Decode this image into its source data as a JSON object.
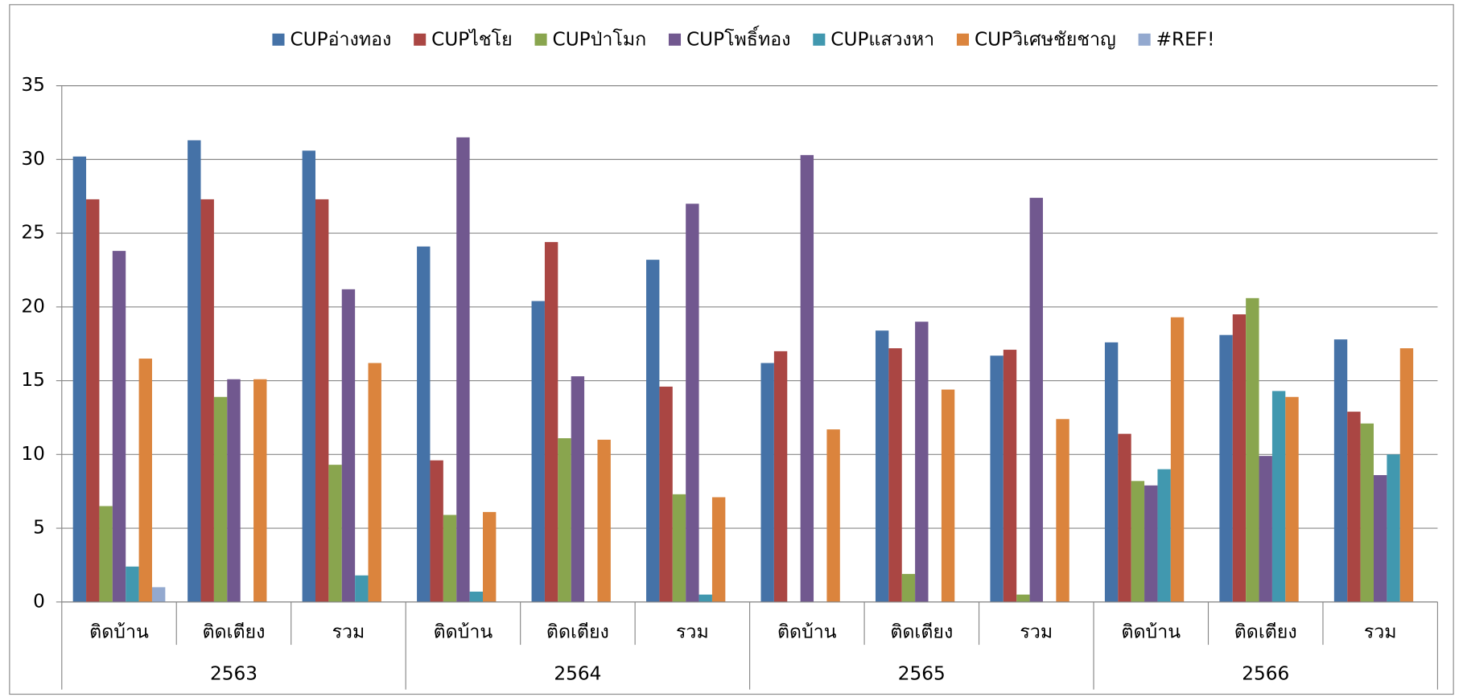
{
  "chart_data": {
    "type": "bar",
    "categories": [
      "ติดบ้าน",
      "ติดเตียง",
      "รวม",
      "ติดบ้าน",
      "ติดเตียง",
      "รวม",
      "ติดบ้าน",
      "ติดเตียง",
      "รวม",
      "ติดบ้าน",
      "ติดเตียง",
      "รวม"
    ],
    "category_groups": [
      "2563",
      "2564",
      "2565",
      "2566"
    ],
    "series": [
      {
        "name": "CUPอ่างทอง",
        "color": "#4572a7",
        "values": [
          30.2,
          31.3,
          30.6,
          24.1,
          20.4,
          23.2,
          16.2,
          18.4,
          16.7,
          17.6,
          18.1,
          17.8
        ]
      },
      {
        "name": "CUPไชโย",
        "color": "#aa4643",
        "values": [
          27.3,
          27.3,
          27.3,
          9.6,
          24.4,
          14.6,
          17.0,
          17.2,
          17.1,
          11.4,
          19.5,
          12.9
        ]
      },
      {
        "name": "CUPป่าโมก",
        "color": "#89a54e",
        "values": [
          6.5,
          13.9,
          9.3,
          5.9,
          11.1,
          7.3,
          0,
          1.9,
          0.5,
          8.2,
          20.6,
          12.1
        ]
      },
      {
        "name": "CUPโพธิ์ทอง",
        "color": "#71588f",
        "values": [
          23.8,
          15.1,
          21.2,
          31.5,
          15.3,
          27.0,
          30.3,
          19.0,
          27.4,
          7.9,
          9.9,
          8.6
        ]
      },
      {
        "name": "CUPแสวงหา",
        "color": "#4198af",
        "values": [
          2.4,
          0,
          1.8,
          0.7,
          0,
          0.5,
          0,
          0,
          0,
          9.0,
          14.3,
          10.0
        ]
      },
      {
        "name": "CUPวิเศษชัยชาญ",
        "color": "#db843d",
        "values": [
          16.5,
          15.1,
          16.2,
          6.1,
          11.0,
          7.1,
          11.7,
          14.4,
          12.4,
          19.3,
          13.9,
          17.2
        ]
      },
      {
        "name": "#REF!",
        "color": "#93a9cf",
        "values": [
          1.0,
          0,
          0,
          0,
          0,
          0,
          0,
          0,
          0,
          0,
          0,
          0
        ]
      }
    ],
    "ylim": [
      0,
      35
    ],
    "yticks": [
      0,
      5,
      10,
      15,
      20,
      25,
      30,
      35
    ],
    "grid": true,
    "legend": "top"
  }
}
